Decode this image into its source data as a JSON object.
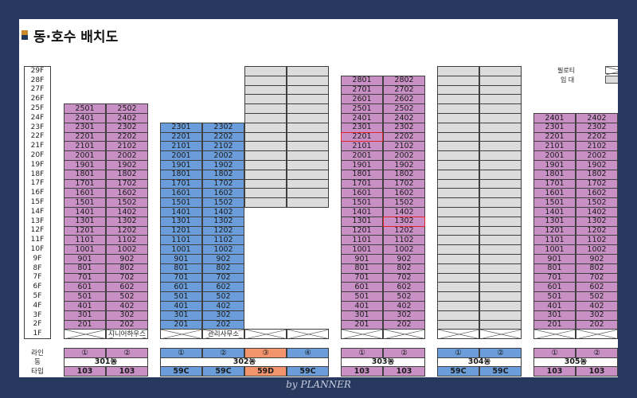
{
  "title": "동·호수 배치도",
  "legend": {
    "pilotis": "필로티",
    "rental": "임 대"
  },
  "floors": [
    "29F",
    "28F",
    "27F",
    "26F",
    "25F",
    "24F",
    "23F",
    "22F",
    "21F",
    "20F",
    "19F",
    "18F",
    "17F",
    "16F",
    "15F",
    "14F",
    "13F",
    "12F",
    "11F",
    "10F",
    "9F",
    "8F",
    "7F",
    "6F",
    "5F",
    "4F",
    "3F",
    "2F",
    "1F"
  ],
  "row_labels": {
    "line": "라인",
    "building": "동",
    "type": "타입"
  },
  "buildings": [
    {
      "name": "301동",
      "top_floor": 25,
      "lines": [
        {
          "line_label": "①",
          "type": "103",
          "color": "purple"
        },
        {
          "line_label": "②",
          "type": "103",
          "color": "purple"
        }
      ],
      "ground_note": {
        "text": "시니어하우스",
        "line_index": 1
      }
    },
    {
      "name": "302동",
      "lines": [
        {
          "line_label": "①",
          "type": "59C",
          "color": "blue",
          "top_floor": 23
        },
        {
          "line_label": "②",
          "type": "59C",
          "color": "blue",
          "top_floor": 23
        },
        {
          "line_label": "③",
          "type": "59D",
          "color": "orange",
          "top_floor": 0,
          "rental_floors": [
            15,
            29
          ]
        },
        {
          "line_label": "④",
          "type": "59C",
          "color": "blue",
          "top_floor": 0,
          "rental_floors": [
            15,
            29
          ]
        }
      ],
      "rental_floors": [
        2,
        15
      ],
      "ground_note": {
        "text": "관리사무소",
        "line_index": 1
      }
    },
    {
      "name": "303동",
      "top_floor": 28,
      "lines": [
        {
          "line_label": "①",
          "type": "103",
          "color": "purple"
        },
        {
          "line_label": "②",
          "type": "103",
          "color": "purple"
        }
      ],
      "highlighted_units": [
        "2201",
        "1302"
      ]
    },
    {
      "name": "304동",
      "top_floor": 0,
      "rental_floors": [
        2,
        29
      ],
      "lines": [
        {
          "line_label": "①",
          "type": "59C",
          "color": "blue"
        },
        {
          "line_label": "②",
          "type": "59C",
          "color": "blue"
        }
      ]
    },
    {
      "name": "305동",
      "top_floor": 24,
      "lines": [
        {
          "line_label": "①",
          "type": "103",
          "color": "purple"
        },
        {
          "line_label": "②",
          "type": "103",
          "color": "purple"
        }
      ]
    }
  ],
  "colors": {
    "purple": "#c990c5",
    "blue": "#6a9dd9",
    "orange": "#f3946c",
    "rental_gray": "#dcdcdc",
    "highlight": "#e0242b"
  },
  "watermark": "by PLANNER"
}
